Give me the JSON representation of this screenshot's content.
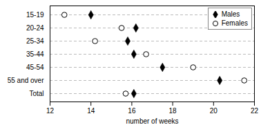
{
  "chart_data": {
    "type": "dot",
    "categories": [
      "15-19",
      "20-24",
      "25-34",
      "35-44",
      "45-54",
      "55 and over",
      "Total"
    ],
    "series": [
      {
        "name": "Males",
        "color": "#000000",
        "marker": "diamond",
        "values": [
          14.0,
          16.2,
          15.8,
          16.1,
          17.5,
          20.3,
          16.1
        ]
      },
      {
        "name": "Females",
        "color": "#000000",
        "marker": "circle-open",
        "values": [
          12.7,
          15.5,
          14.2,
          16.7,
          19.0,
          21.5,
          15.7
        ]
      }
    ],
    "xlabel": "number of weeks",
    "xlim": [
      12,
      22
    ],
    "xticks": [
      12,
      14,
      16,
      18,
      20,
      22
    ],
    "orientation": "horizontal",
    "grid": true,
    "legend": "upper right"
  }
}
